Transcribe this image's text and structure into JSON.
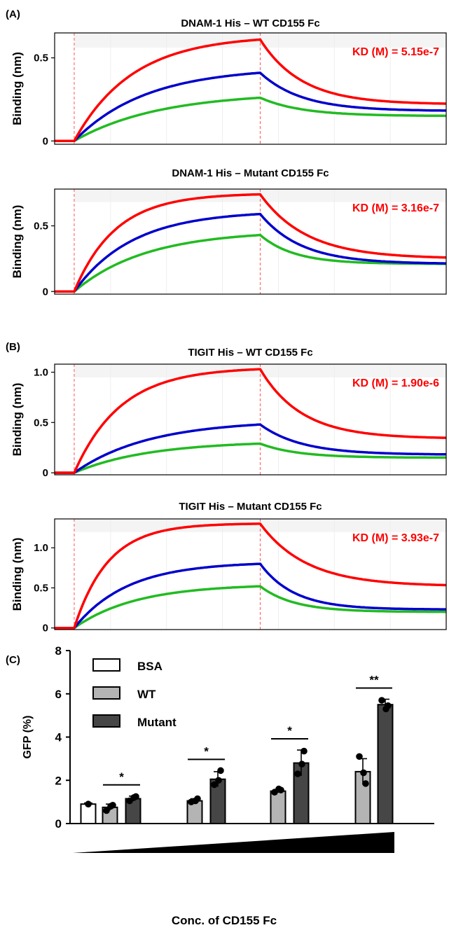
{
  "panels": {
    "A": {
      "label": "(A)"
    },
    "B": {
      "label": "(B)"
    },
    "C": {
      "label": "(C)"
    }
  },
  "colors": {
    "high": "#ff0000",
    "mid": "#0000cc",
    "low": "#22bb22",
    "bsa": "#ffffff",
    "wt": "#b4b4b4",
    "mutant": "#464646",
    "kd_text": "#ff0000"
  },
  "chart_data": [
    {
      "type": "line",
      "title": "DNAM-1 His – WT CD155 Fc",
      "ylabel": "Binding (nm)",
      "yticks": [
        "0",
        "0.5"
      ],
      "ylim": [
        -0.02,
        0.65
      ],
      "kd_label": "KD (M) = 5.15e-7",
      "x_ticks_labeled": false,
      "shading": "#f4f4f4",
      "series": [
        {
          "color": "#ff0000",
          "plateau": 0.61,
          "k_assoc": 3.2,
          "residual": 0.22,
          "k_dissoc": 4.5
        },
        {
          "color": "#0000cc",
          "plateau": 0.41,
          "k_assoc": 2.6,
          "residual": 0.18,
          "k_dissoc": 4.5
        },
        {
          "color": "#22bb22",
          "plateau": 0.26,
          "k_assoc": 2.2,
          "residual": 0.15,
          "k_dissoc": 4.5
        }
      ]
    },
    {
      "type": "line",
      "title": "DNAM-1 His – Mutant CD155 Fc",
      "ylabel": "Binding (nm)",
      "yticks": [
        "0",
        "0.5"
      ],
      "ylim": [
        -0.02,
        0.78
      ],
      "kd_label": "KD (M) = 3.16e-7",
      "x_ticks_labeled": false,
      "shading": "#f4f4f4",
      "series": [
        {
          "color": "#ff0000",
          "plateau": 0.74,
          "k_assoc": 4.5,
          "residual": 0.25,
          "k_dissoc": 4.0
        },
        {
          "color": "#0000cc",
          "plateau": 0.59,
          "k_assoc": 3.2,
          "residual": 0.21,
          "k_dissoc": 4.5
        },
        {
          "color": "#22bb22",
          "plateau": 0.43,
          "k_assoc": 2.6,
          "residual": 0.21,
          "k_dissoc": 5.5
        }
      ]
    },
    {
      "type": "line",
      "title": "TIGIT His – WT CD155 Fc",
      "ylabel": "Binding (nm)",
      "yticks": [
        "0",
        "0.5",
        "1.0"
      ],
      "ylim": [
        -0.02,
        1.08
      ],
      "kd_label": "KD (M) = 1.90e-6",
      "x_ticks_labeled": false,
      "shading": "#f4f4f4",
      "series": [
        {
          "color": "#ff0000",
          "plateau": 1.03,
          "k_assoc": 4.0,
          "residual": 0.34,
          "k_dissoc": 4.5
        },
        {
          "color": "#0000cc",
          "plateau": 0.48,
          "k_assoc": 2.5,
          "residual": 0.18,
          "k_dissoc": 4.5
        },
        {
          "color": "#22bb22",
          "plateau": 0.29,
          "k_assoc": 2.5,
          "residual": 0.15,
          "k_dissoc": 5.0
        }
      ]
    },
    {
      "type": "line",
      "title": "TIGIT His – Mutant CD155 Fc",
      "ylabel": "Binding (nm)",
      "yticks": [
        "0",
        "0.5",
        "1.0"
      ],
      "ylim": [
        -0.02,
        1.36
      ],
      "kd_label": "KD (M) = 3.93e-7",
      "x_ticks_labeled": false,
      "shading": "#f4f4f4",
      "series": [
        {
          "color": "#ff0000",
          "plateau": 1.3,
          "k_assoc": 5.5,
          "residual": 0.52,
          "k_dissoc": 4.0
        },
        {
          "color": "#0000cc",
          "plateau": 0.8,
          "k_assoc": 3.5,
          "residual": 0.23,
          "k_dissoc": 5.5
        },
        {
          "color": "#22bb22",
          "plateau": 0.52,
          "k_assoc": 3.0,
          "residual": 0.2,
          "k_dissoc": 5.5
        }
      ]
    },
    {
      "type": "bar",
      "ylabel": "GFP (%)",
      "xlabel": "Conc. of CD155 Fc",
      "ylim": [
        0,
        8
      ],
      "yticks": [
        "0",
        "2",
        "4",
        "6",
        "8"
      ],
      "legend": {
        "position": "top-left",
        "entries": [
          "BSA",
          "WT",
          "Mutant"
        ]
      },
      "groups": [
        {
          "bars": [
            {
              "series": "BSA",
              "value": 0.9,
              "err": 0.05,
              "points": [
                0.9
              ]
            },
            {
              "series": "WT",
              "value": 0.75,
              "err": 0.15,
              "points": [
                0.6,
                0.85,
                0.8
              ]
            },
            {
              "series": "Mutant",
              "value": 1.15,
              "err": 0.12,
              "points": [
                1.05,
                1.25,
                1.2
              ]
            }
          ],
          "significance": "*"
        },
        {
          "bars": [
            {
              "series": "WT",
              "value": 1.05,
              "err": 0.1,
              "points": [
                1.0,
                1.15,
                1.05
              ]
            },
            {
              "series": "Mutant",
              "value": 2.05,
              "err": 0.35,
              "points": [
                1.8,
                2.45,
                2.0
              ]
            }
          ],
          "significance": "*"
        },
        {
          "bars": [
            {
              "series": "WT",
              "value": 1.5,
              "err": 0.08,
              "points": [
                1.45,
                1.55,
                1.6
              ]
            },
            {
              "series": "Mutant",
              "value": 2.8,
              "err": 0.6,
              "points": [
                2.3,
                3.35,
                2.75
              ]
            }
          ],
          "significance": "*"
        },
        {
          "bars": [
            {
              "series": "WT",
              "value": 2.4,
              "err": 0.6,
              "points": [
                3.1,
                1.85,
                2.35
              ]
            },
            {
              "series": "Mutant",
              "value": 5.5,
              "err": 0.25,
              "points": [
                5.7,
                5.45,
                5.3
              ]
            }
          ],
          "significance": "**"
        }
      ]
    }
  ]
}
